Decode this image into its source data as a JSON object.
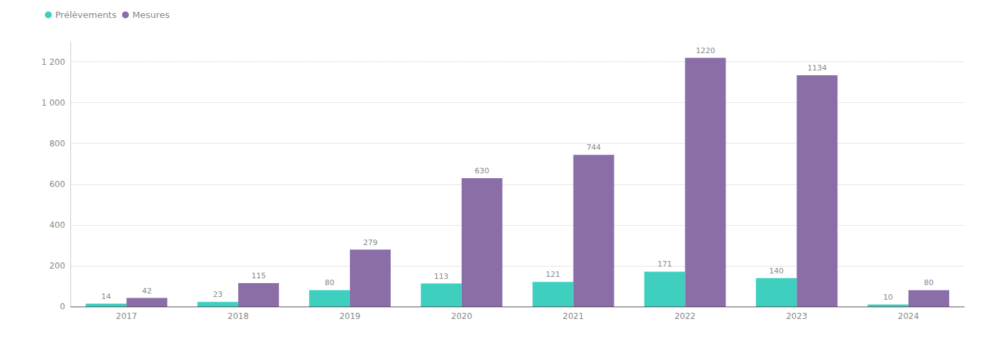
{
  "chart_data": {
    "type": "bar",
    "categories": [
      "2017",
      "2018",
      "2019",
      "2020",
      "2021",
      "2022",
      "2023",
      "2024"
    ],
    "series": [
      {
        "name": "Prélèvements",
        "color": "#3ECFBF",
        "values": [
          14,
          23,
          80,
          113,
          121,
          171,
          140,
          10
        ]
      },
      {
        "name": "Mesures",
        "color": "#8B6EA8",
        "values": [
          42,
          115,
          279,
          630,
          744,
          1220,
          1134,
          80
        ]
      }
    ],
    "ylim": [
      0,
      1300
    ],
    "yticks": [
      0,
      200,
      400,
      600,
      800,
      {
        "value": 1000,
        "label": "1 000"
      },
      {
        "value": 1200,
        "label": "1 200"
      }
    ],
    "grid": true,
    "legend": "upper left",
    "data_labels": true
  }
}
